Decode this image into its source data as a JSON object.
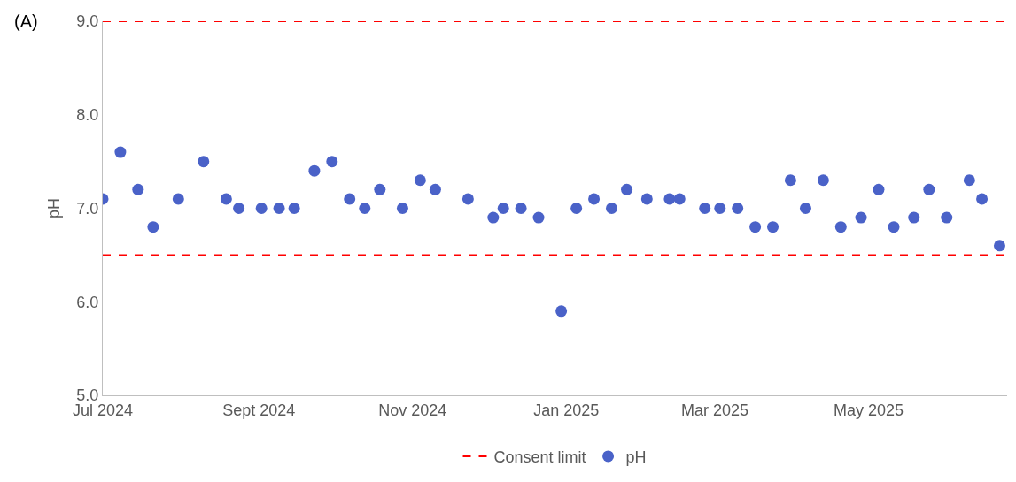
{
  "chart_data": {
    "type": "scatter",
    "annotations": [
      "(A)"
    ],
    "ylabel": "pH",
    "x": [
      "2024-07-01",
      "2024-07-08",
      "2024-07-15",
      "2024-07-21",
      "2024-07-31",
      "2024-08-10",
      "2024-08-19",
      "2024-08-24",
      "2024-09-02",
      "2024-09-09",
      "2024-09-15",
      "2024-09-23",
      "2024-09-30",
      "2024-10-07",
      "2024-10-13",
      "2024-10-19",
      "2024-10-28",
      "2024-11-04",
      "2024-11-10",
      "2024-11-23",
      "2024-12-03",
      "2024-12-07",
      "2024-12-14",
      "2024-12-21",
      "2024-12-30",
      "2025-01-05",
      "2025-01-12",
      "2025-01-19",
      "2025-01-25",
      "2025-02-02",
      "2025-02-11",
      "2025-02-15",
      "2025-02-25",
      "2025-03-03",
      "2025-03-10",
      "2025-03-17",
      "2025-03-24",
      "2025-03-31",
      "2025-04-06",
      "2025-04-13",
      "2025-04-20",
      "2025-04-28",
      "2025-05-05",
      "2025-05-11",
      "2025-05-19",
      "2025-05-25",
      "2025-06-01",
      "2025-06-10",
      "2025-06-15",
      "2025-06-22"
    ],
    "series": [
      {
        "name": "pH",
        "color": "#4a62c8",
        "values": [
          7.1,
          7.6,
          7.2,
          6.8,
          7.1,
          7.5,
          7.1,
          7.0,
          7.0,
          7.0,
          7.0,
          7.4,
          7.5,
          7.1,
          7.0,
          7.2,
          7.0,
          7.3,
          7.2,
          7.1,
          6.9,
          7.0,
          7.0,
          6.9,
          5.9,
          7.0,
          7.1,
          7.0,
          7.2,
          7.1,
          7.1,
          7.1,
          7.0,
          7.0,
          7.0,
          6.8,
          6.8,
          7.3,
          7.0,
          7.3,
          6.8,
          6.9,
          7.2,
          6.8,
          6.9,
          7.2,
          6.9,
          7.3,
          7.1,
          6.6
        ]
      }
    ],
    "marker": "circle",
    "ref_lines": [
      {
        "axis": "y",
        "value": 9.0,
        "label": "Consent limit",
        "color": "#ff0000",
        "line_style": "dashed"
      },
      {
        "axis": "y",
        "value": 6.5,
        "color": "#ff0000",
        "line_style": "dashed"
      }
    ],
    "xlim": [
      "2024-07-01",
      "2025-06-25"
    ],
    "xticks": [
      {
        "value": "2024-07-01",
        "label": "Jul 2024"
      },
      {
        "value": "2024-09-01",
        "label": "Sept 2024"
      },
      {
        "value": "2024-11-01",
        "label": "Nov 2024"
      },
      {
        "value": "2025-01-01",
        "label": "Jan 2025"
      },
      {
        "value": "2025-03-01",
        "label": "Mar 2025"
      },
      {
        "value": "2025-05-01",
        "label": "May 2025"
      }
    ],
    "ylim": [
      5,
      9
    ],
    "yticks": [
      {
        "value": 5,
        "label": "5.0"
      },
      {
        "value": 6,
        "label": "6.0"
      },
      {
        "value": 7,
        "label": "7.0"
      },
      {
        "value": 8,
        "label": "8.0"
      },
      {
        "value": 9,
        "label": "9.0"
      }
    ],
    "legend": "bottom"
  }
}
